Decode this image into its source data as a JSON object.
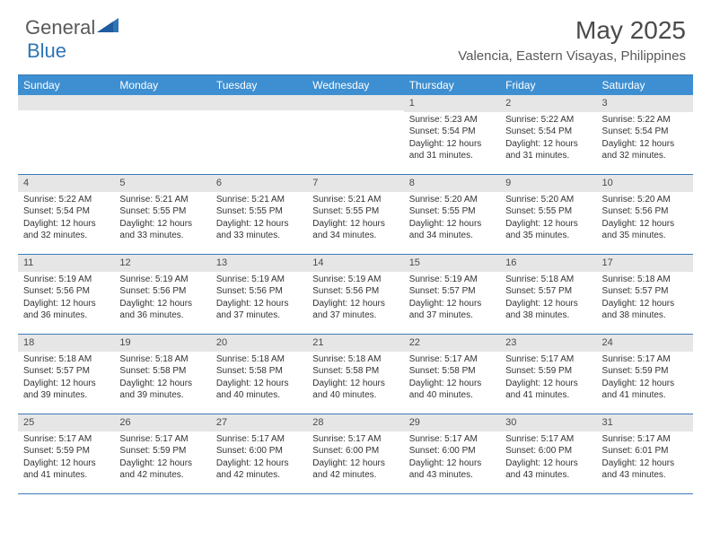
{
  "brand": {
    "name1": "General",
    "name2": "Blue"
  },
  "title": "May 2025",
  "location": "Valencia, Eastern Visayas, Philippines",
  "colors": {
    "header_bg": "#3d8fd1",
    "border": "#3d7ab8",
    "daynum_bg": "#e6e6e6",
    "text": "#333333",
    "muted": "#595959",
    "blue_shape": "#2e75b6"
  },
  "day_names": [
    "Sunday",
    "Monday",
    "Tuesday",
    "Wednesday",
    "Thursday",
    "Friday",
    "Saturday"
  ],
  "weeks": [
    [
      {
        "n": "",
        "sr": "",
        "ss": "",
        "dl": ""
      },
      {
        "n": "",
        "sr": "",
        "ss": "",
        "dl": ""
      },
      {
        "n": "",
        "sr": "",
        "ss": "",
        "dl": ""
      },
      {
        "n": "",
        "sr": "",
        "ss": "",
        "dl": ""
      },
      {
        "n": "1",
        "sr": "Sunrise: 5:23 AM",
        "ss": "Sunset: 5:54 PM",
        "dl": "Daylight: 12 hours and 31 minutes."
      },
      {
        "n": "2",
        "sr": "Sunrise: 5:22 AM",
        "ss": "Sunset: 5:54 PM",
        "dl": "Daylight: 12 hours and 31 minutes."
      },
      {
        "n": "3",
        "sr": "Sunrise: 5:22 AM",
        "ss": "Sunset: 5:54 PM",
        "dl": "Daylight: 12 hours and 32 minutes."
      }
    ],
    [
      {
        "n": "4",
        "sr": "Sunrise: 5:22 AM",
        "ss": "Sunset: 5:54 PM",
        "dl": "Daylight: 12 hours and 32 minutes."
      },
      {
        "n": "5",
        "sr": "Sunrise: 5:21 AM",
        "ss": "Sunset: 5:55 PM",
        "dl": "Daylight: 12 hours and 33 minutes."
      },
      {
        "n": "6",
        "sr": "Sunrise: 5:21 AM",
        "ss": "Sunset: 5:55 PM",
        "dl": "Daylight: 12 hours and 33 minutes."
      },
      {
        "n": "7",
        "sr": "Sunrise: 5:21 AM",
        "ss": "Sunset: 5:55 PM",
        "dl": "Daylight: 12 hours and 34 minutes."
      },
      {
        "n": "8",
        "sr": "Sunrise: 5:20 AM",
        "ss": "Sunset: 5:55 PM",
        "dl": "Daylight: 12 hours and 34 minutes."
      },
      {
        "n": "9",
        "sr": "Sunrise: 5:20 AM",
        "ss": "Sunset: 5:55 PM",
        "dl": "Daylight: 12 hours and 35 minutes."
      },
      {
        "n": "10",
        "sr": "Sunrise: 5:20 AM",
        "ss": "Sunset: 5:56 PM",
        "dl": "Daylight: 12 hours and 35 minutes."
      }
    ],
    [
      {
        "n": "11",
        "sr": "Sunrise: 5:19 AM",
        "ss": "Sunset: 5:56 PM",
        "dl": "Daylight: 12 hours and 36 minutes."
      },
      {
        "n": "12",
        "sr": "Sunrise: 5:19 AM",
        "ss": "Sunset: 5:56 PM",
        "dl": "Daylight: 12 hours and 36 minutes."
      },
      {
        "n": "13",
        "sr": "Sunrise: 5:19 AM",
        "ss": "Sunset: 5:56 PM",
        "dl": "Daylight: 12 hours and 37 minutes."
      },
      {
        "n": "14",
        "sr": "Sunrise: 5:19 AM",
        "ss": "Sunset: 5:56 PM",
        "dl": "Daylight: 12 hours and 37 minutes."
      },
      {
        "n": "15",
        "sr": "Sunrise: 5:19 AM",
        "ss": "Sunset: 5:57 PM",
        "dl": "Daylight: 12 hours and 37 minutes."
      },
      {
        "n": "16",
        "sr": "Sunrise: 5:18 AM",
        "ss": "Sunset: 5:57 PM",
        "dl": "Daylight: 12 hours and 38 minutes."
      },
      {
        "n": "17",
        "sr": "Sunrise: 5:18 AM",
        "ss": "Sunset: 5:57 PM",
        "dl": "Daylight: 12 hours and 38 minutes."
      }
    ],
    [
      {
        "n": "18",
        "sr": "Sunrise: 5:18 AM",
        "ss": "Sunset: 5:57 PM",
        "dl": "Daylight: 12 hours and 39 minutes."
      },
      {
        "n": "19",
        "sr": "Sunrise: 5:18 AM",
        "ss": "Sunset: 5:58 PM",
        "dl": "Daylight: 12 hours and 39 minutes."
      },
      {
        "n": "20",
        "sr": "Sunrise: 5:18 AM",
        "ss": "Sunset: 5:58 PM",
        "dl": "Daylight: 12 hours and 40 minutes."
      },
      {
        "n": "21",
        "sr": "Sunrise: 5:18 AM",
        "ss": "Sunset: 5:58 PM",
        "dl": "Daylight: 12 hours and 40 minutes."
      },
      {
        "n": "22",
        "sr": "Sunrise: 5:17 AM",
        "ss": "Sunset: 5:58 PM",
        "dl": "Daylight: 12 hours and 40 minutes."
      },
      {
        "n": "23",
        "sr": "Sunrise: 5:17 AM",
        "ss": "Sunset: 5:59 PM",
        "dl": "Daylight: 12 hours and 41 minutes."
      },
      {
        "n": "24",
        "sr": "Sunrise: 5:17 AM",
        "ss": "Sunset: 5:59 PM",
        "dl": "Daylight: 12 hours and 41 minutes."
      }
    ],
    [
      {
        "n": "25",
        "sr": "Sunrise: 5:17 AM",
        "ss": "Sunset: 5:59 PM",
        "dl": "Daylight: 12 hours and 41 minutes."
      },
      {
        "n": "26",
        "sr": "Sunrise: 5:17 AM",
        "ss": "Sunset: 5:59 PM",
        "dl": "Daylight: 12 hours and 42 minutes."
      },
      {
        "n": "27",
        "sr": "Sunrise: 5:17 AM",
        "ss": "Sunset: 6:00 PM",
        "dl": "Daylight: 12 hours and 42 minutes."
      },
      {
        "n": "28",
        "sr": "Sunrise: 5:17 AM",
        "ss": "Sunset: 6:00 PM",
        "dl": "Daylight: 12 hours and 42 minutes."
      },
      {
        "n": "29",
        "sr": "Sunrise: 5:17 AM",
        "ss": "Sunset: 6:00 PM",
        "dl": "Daylight: 12 hours and 43 minutes."
      },
      {
        "n": "30",
        "sr": "Sunrise: 5:17 AM",
        "ss": "Sunset: 6:00 PM",
        "dl": "Daylight: 12 hours and 43 minutes."
      },
      {
        "n": "31",
        "sr": "Sunrise: 5:17 AM",
        "ss": "Sunset: 6:01 PM",
        "dl": "Daylight: 12 hours and 43 minutes."
      }
    ]
  ]
}
